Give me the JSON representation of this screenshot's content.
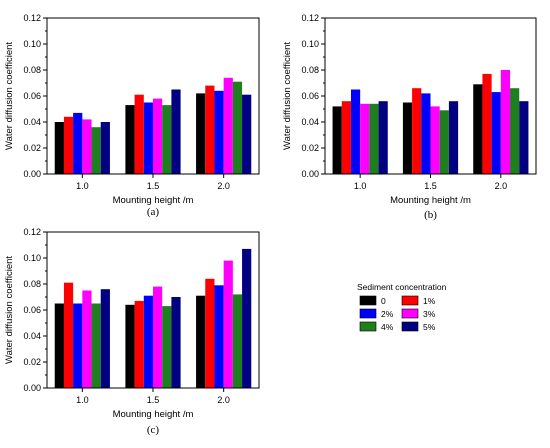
{
  "legend": {
    "title": "Sediment concentration",
    "entries": [
      {
        "label": "0",
        "color": "#000000"
      },
      {
        "label": "1%",
        "color": "#ff0000"
      },
      {
        "label": "2%",
        "color": "#0000ff"
      },
      {
        "label": "3%",
        "color": "#ff00ff"
      },
      {
        "label": "4%",
        "color": "#1f7f1f"
      },
      {
        "label": "5%",
        "color": "#000080"
      }
    ]
  },
  "chart_data": [
    {
      "panel": "(a)",
      "type": "bar",
      "categories": [
        "1.0",
        "1.5",
        "2.0"
      ],
      "xlabel": "Mounting height /m",
      "ylabel": "Water diffusion coefficient",
      "ylim": [
        0,
        0.12
      ],
      "yticks": [
        "0.00",
        "0.02",
        "0.04",
        "0.06",
        "0.08",
        "0.10",
        "0.12"
      ],
      "series": [
        {
          "name": "0",
          "values": [
            0.04,
            0.053,
            0.062
          ]
        },
        {
          "name": "1%",
          "values": [
            0.044,
            0.061,
            0.068
          ]
        },
        {
          "name": "2%",
          "values": [
            0.047,
            0.055,
            0.064
          ]
        },
        {
          "name": "3%",
          "values": [
            0.042,
            0.058,
            0.074
          ]
        },
        {
          "name": "4%",
          "values": [
            0.036,
            0.053,
            0.071
          ]
        },
        {
          "name": "5%",
          "values": [
            0.04,
            0.065,
            0.061
          ]
        }
      ]
    },
    {
      "panel": "(b)",
      "type": "bar",
      "categories": [
        "1.0",
        "1.5",
        "2.0"
      ],
      "xlabel": "Mounting height /m",
      "ylabel": "Water diffusion coefficient",
      "ylim": [
        0,
        0.12
      ],
      "yticks": [
        "0.00",
        "0.02",
        "0.04",
        "0.06",
        "0.08",
        "0.10",
        "0.12"
      ],
      "series": [
        {
          "name": "0",
          "values": [
            0.052,
            0.055,
            0.069
          ]
        },
        {
          "name": "1%",
          "values": [
            0.056,
            0.066,
            0.077
          ]
        },
        {
          "name": "2%",
          "values": [
            0.065,
            0.062,
            0.063
          ]
        },
        {
          "name": "3%",
          "values": [
            0.054,
            0.052,
            0.08
          ]
        },
        {
          "name": "4%",
          "values": [
            0.054,
            0.049,
            0.066
          ]
        },
        {
          "name": "5%",
          "values": [
            0.056,
            0.056,
            0.056
          ]
        }
      ]
    },
    {
      "panel": "(c)",
      "type": "bar",
      "categories": [
        "1.0",
        "1.5",
        "2.0"
      ],
      "xlabel": "Mounting height /m",
      "ylabel": "Water diffusion coefficient",
      "ylim": [
        0,
        0.12
      ],
      "yticks": [
        "0.00",
        "0.02",
        "0.04",
        "0.06",
        "0.08",
        "0.10",
        "0.12"
      ],
      "series": [
        {
          "name": "0",
          "values": [
            0.065,
            0.064,
            0.071
          ]
        },
        {
          "name": "1%",
          "values": [
            0.081,
            0.067,
            0.084
          ]
        },
        {
          "name": "2%",
          "values": [
            0.065,
            0.071,
            0.079
          ]
        },
        {
          "name": "3%",
          "values": [
            0.075,
            0.078,
            0.098
          ]
        },
        {
          "name": "4%",
          "values": [
            0.065,
            0.063,
            0.072
          ]
        },
        {
          "name": "5%",
          "values": [
            0.076,
            0.07,
            0.107
          ]
        }
      ]
    }
  ]
}
